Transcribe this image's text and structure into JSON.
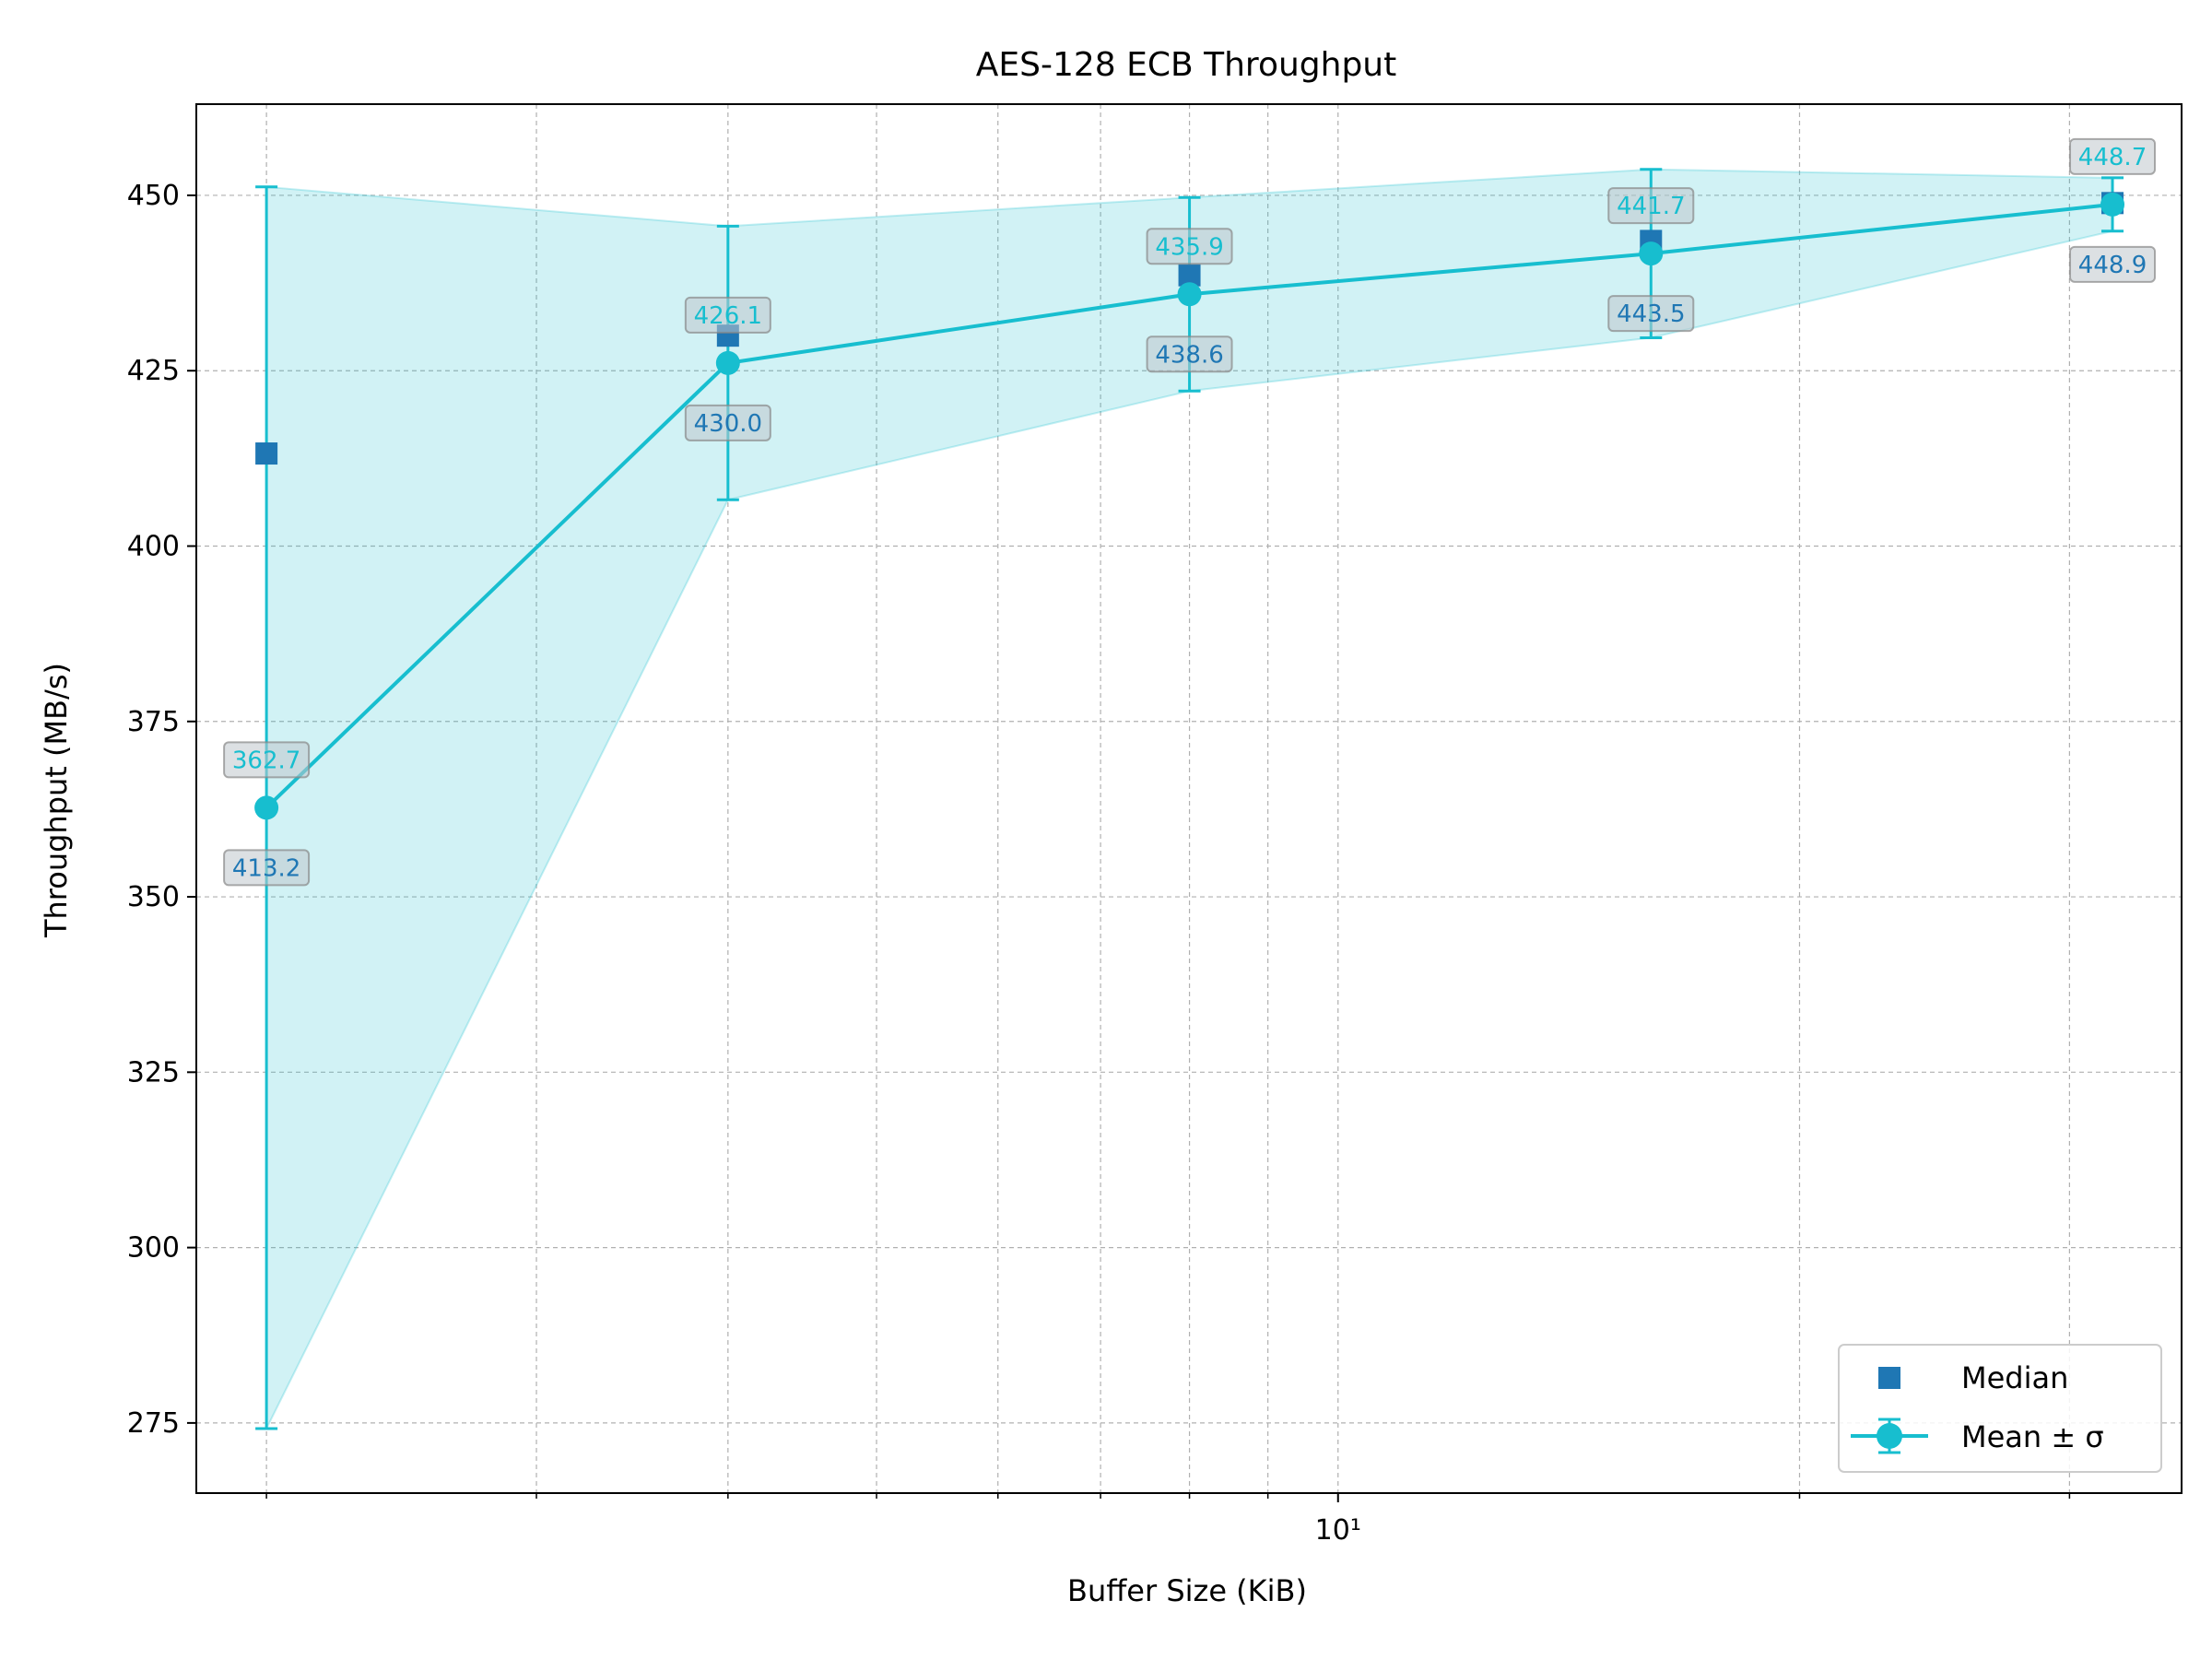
{
  "chart_data": {
    "type": "line",
    "title": "AES-128 ECB Throughput",
    "xlabel": "Buffer Size (KiB)",
    "ylabel": "Throughput (MB/s)",
    "xscale": "log",
    "xlim": [
      1.8,
      35.5
    ],
    "ylim": [
      265,
      463
    ],
    "x": [
      2,
      4,
      8,
      16,
      32
    ],
    "grid": true,
    "legend_position": "lower-right",
    "x_major_ticks": [
      {
        "value": 10,
        "label": "10¹"
      }
    ],
    "x_minor_ticks": [
      2,
      3,
      4,
      5,
      6,
      7,
      8,
      9,
      20,
      30
    ],
    "y_ticks": [
      275,
      300,
      325,
      350,
      375,
      400,
      425,
      450
    ],
    "colors": {
      "mean": "#17becf",
      "median": "#1f77b4",
      "band": "#17becf"
    },
    "series": [
      {
        "name": "Median",
        "kind": "scatter",
        "marker": "square",
        "values": [
          413.2,
          430.0,
          438.6,
          443.5,
          448.9
        ],
        "labels": [
          "413.2",
          "430.0",
          "438.6",
          "443.5",
          "448.9"
        ]
      },
      {
        "name": "Mean ± σ",
        "kind": "line-errorbar",
        "marker": "circle",
        "values": [
          362.7,
          426.1,
          435.9,
          441.7,
          448.7
        ],
        "std": [
          88.5,
          19.5,
          13.8,
          12.0,
          3.8
        ],
        "labels": [
          "362.7",
          "426.1",
          "435.9",
          "441.7",
          "448.7"
        ]
      }
    ]
  }
}
